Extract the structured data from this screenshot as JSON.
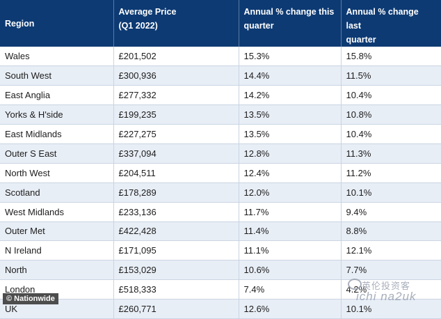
{
  "chart_data": {
    "type": "table",
    "columns": [
      "Region",
      "Average Price\n(Q1 2022)",
      "Annual % change this\nquarter",
      "Annual % change last\nquarter"
    ],
    "rows": [
      [
        "Wales",
        "£201,502",
        "15.3%",
        "15.8%"
      ],
      [
        "South West",
        "£300,936",
        "14.4%",
        "11.5%"
      ],
      [
        "East Anglia",
        "£277,332",
        "14.2%",
        "10.4%"
      ],
      [
        "Yorks & H'side",
        "£199,235",
        "13.5%",
        "10.8%"
      ],
      [
        "East Midlands",
        "£227,275",
        "13.5%",
        "10.4%"
      ],
      [
        "Outer S East",
        "£337,094",
        "12.8%",
        "11.3%"
      ],
      [
        "North West",
        "£204,511",
        "12.4%",
        "11.2%"
      ],
      [
        "Scotland",
        "£178,289",
        "12.0%",
        "10.1%"
      ],
      [
        "West Midlands",
        "£233,136",
        "11.7%",
        "9.4%"
      ],
      [
        "Outer Met",
        "£422,428",
        "11.4%",
        "8.8%"
      ],
      [
        "N Ireland",
        "£171,095",
        "11.1%",
        "12.1%"
      ],
      [
        "North",
        "£153,029",
        "10.6%",
        "7.7%"
      ],
      [
        "London",
        "£518,333",
        "7.4%",
        "4.2%"
      ],
      [
        "UK",
        "£260,771",
        "12.6%",
        "10.1%"
      ]
    ]
  },
  "credit": "© Nationwide",
  "watermark": {
    "cn": "英伦投资客",
    "en": "ichi na2uk"
  },
  "colors": {
    "header_bg": "#0d3a73",
    "header_text": "#ffffff",
    "row_alt": "#e8eef6"
  }
}
